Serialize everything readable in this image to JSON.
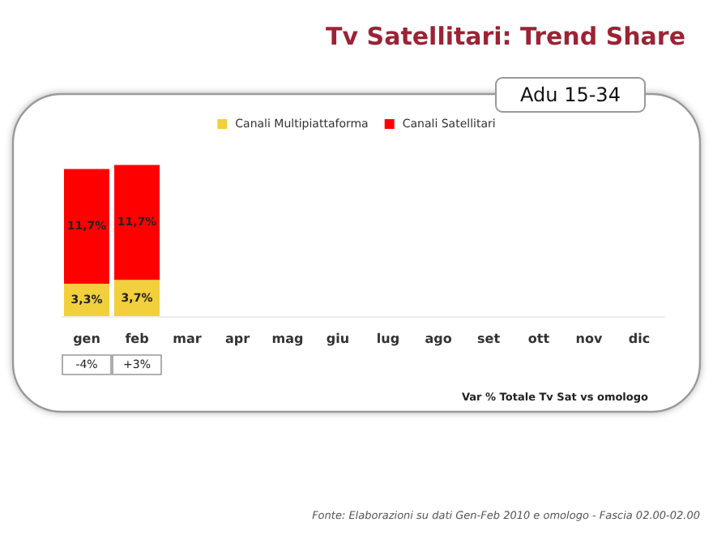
{
  "chart_data": {
    "type": "bar",
    "title": "Tv Satellitari: Trend Share",
    "subtitle": "Adu 15-34",
    "stacked": true,
    "legend": "top",
    "categories": [
      "gen",
      "feb",
      "mar",
      "apr",
      "mag",
      "giu",
      "lug",
      "ago",
      "set",
      "ott",
      "nov",
      "dic"
    ],
    "series": [
      {
        "name": "Canali Multipiattaforma",
        "color": "#f2cf3c",
        "values": [
          3.3,
          3.7,
          null,
          null,
          null,
          null,
          null,
          null,
          null,
          null,
          null,
          null
        ],
        "value_labels": [
          "3,3%",
          "3,7%",
          null,
          null,
          null,
          null,
          null,
          null,
          null,
          null,
          null,
          null
        ]
      },
      {
        "name": "Canali Satellitari",
        "color": "#ff0000",
        "values": [
          11.7,
          11.7,
          null,
          null,
          null,
          null,
          null,
          null,
          null,
          null,
          null,
          null
        ],
        "value_labels": [
          "11,7%",
          "11,7%",
          null,
          null,
          null,
          null,
          null,
          null,
          null,
          null,
          null,
          null
        ]
      }
    ],
    "annotations": [
      "-4%",
      "+3%",
      "Var % Totale Tv Sat vs omologo",
      "Fonte: Elaborazioni su dati Gen-Feb 2010 e omologo - Fascia 02.00-02.00"
    ]
  }
}
